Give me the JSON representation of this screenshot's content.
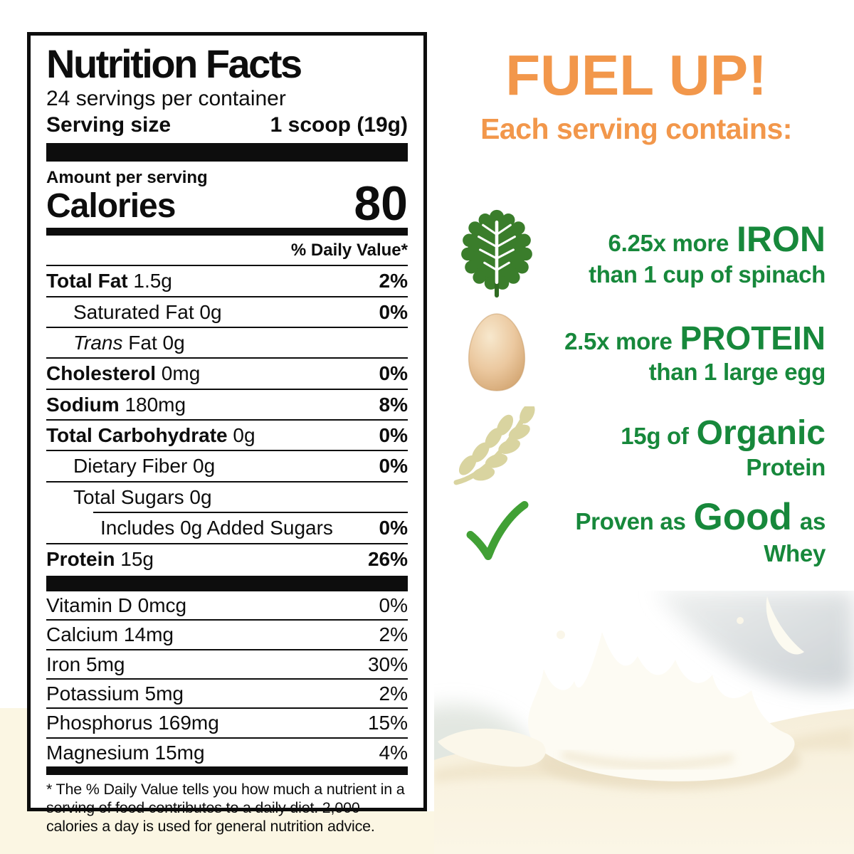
{
  "nutrition_label": {
    "title": "Nutrition Facts",
    "servings_per_container": "24 servings per container",
    "serving_size_label": "Serving size",
    "serving_size_value": "1 scoop (19g)",
    "amount_per_serving": "Amount per serving",
    "calories_label": "Calories",
    "calories_value": "80",
    "daily_value_header": "% Daily Value*",
    "rows": [
      {
        "name": "Total Fat",
        "amount": "1.5g",
        "daily_value": "2%",
        "emphasis": "bold",
        "indent": 0
      },
      {
        "name": "Saturated Fat",
        "amount": "0g",
        "daily_value": "0%",
        "emphasis": "none",
        "indent": 1
      },
      {
        "name": "Trans Fat",
        "amount": "0g",
        "daily_value": "",
        "emphasis": "italic-first",
        "indent": 1
      },
      {
        "name": "Cholesterol",
        "amount": "0mg",
        "daily_value": "0%",
        "emphasis": "bold",
        "indent": 0
      },
      {
        "name": "Sodium",
        "amount": "180mg",
        "daily_value": "8%",
        "emphasis": "bold",
        "indent": 0
      },
      {
        "name": "Total Carbohydrate",
        "amount": "0g",
        "daily_value": "0%",
        "emphasis": "bold",
        "indent": 0
      },
      {
        "name": "Dietary Fiber",
        "amount": "0g",
        "daily_value": "0%",
        "emphasis": "none",
        "indent": 1
      },
      {
        "name": "Total Sugars",
        "amount": "0g",
        "daily_value": "",
        "emphasis": "none",
        "indent": 1
      },
      {
        "name": "Includes 0g Added Sugars",
        "amount": "",
        "daily_value": "0%",
        "emphasis": "none",
        "indent": 2,
        "separator_indent": true
      },
      {
        "name": "Protein",
        "amount": "15g",
        "daily_value": "26%",
        "emphasis": "bold",
        "indent": 0
      }
    ],
    "micronutrients": [
      {
        "name": "Vitamin D",
        "amount": "0mcg",
        "daily_value": "0%"
      },
      {
        "name": "Calcium",
        "amount": "14mg",
        "daily_value": "2%"
      },
      {
        "name": "Iron",
        "amount": "5mg",
        "daily_value": "30%"
      },
      {
        "name": "Potassium",
        "amount": "5mg",
        "daily_value": "2%"
      },
      {
        "name": "Phosphorus",
        "amount": "169mg",
        "daily_value": "15%"
      },
      {
        "name": "Magnesium",
        "amount": "15mg",
        "daily_value": "4%"
      }
    ],
    "footnote": "* The % Daily Value tells you how much a nutrient in a serving of food contributes to a daily diet. 2,000 calories a day is used for general nutrition advice."
  },
  "promo_panel": {
    "headline": "FUEL UP!",
    "subheadline": "Each serving contains:",
    "items": [
      {
        "icon": "kale-leaf",
        "line1_prefix": "6.25x more",
        "line1_highlight": "IRON",
        "line2": "than 1 cup of spinach"
      },
      {
        "icon": "egg",
        "line1_prefix": "2.5x more",
        "line1_highlight": "PROTEIN",
        "line2": "than 1 large egg"
      },
      {
        "icon": "wheat-sprig",
        "line1_prefix": "15g of",
        "line1_highlight": "Organic",
        "line2": "Protein"
      },
      {
        "icon": "checkmark",
        "line1_prefix": "Proven as",
        "line1_highlight": "Good",
        "line1_suffix": "as",
        "line2": "Whey"
      }
    ]
  },
  "palette": {
    "orange": "#F2974B",
    "green": "#17883B",
    "check_green": "#41A035",
    "leaf_green": "#3A7D2B",
    "egg_tan": "#E5C097",
    "wheat_khaki": "#D9D4A0",
    "cream": "#FBF6E3",
    "label_ink": "#0D0D0D"
  }
}
